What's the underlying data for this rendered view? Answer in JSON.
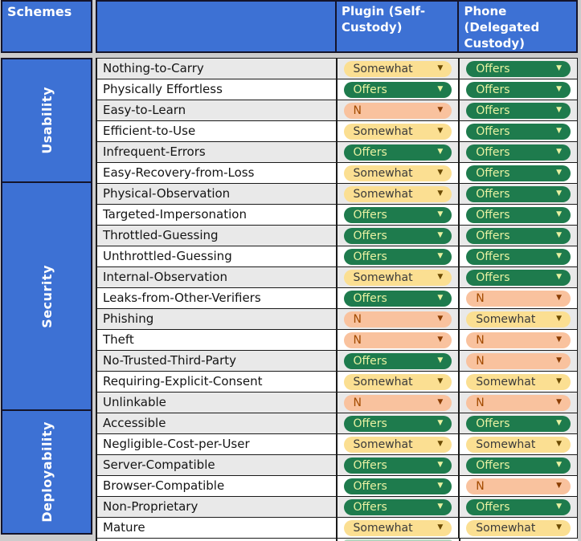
{
  "header": {
    "schemes_label": "Schemes",
    "columns": [
      {
        "key": "plugin",
        "label": "Plugin (Self-Custody)"
      },
      {
        "key": "phone",
        "label": "Phone (Delegated Custody)"
      }
    ]
  },
  "dropdown_options": [
    "Offers",
    "Somewhat",
    "N"
  ],
  "sections": [
    {
      "label": "Usability",
      "rows": [
        {
          "name": "Nothing-to-Carry",
          "plugin": "Somewhat",
          "phone": "Offers"
        },
        {
          "name": "Physically Effortless",
          "plugin": "Offers",
          "phone": "Offers"
        },
        {
          "name": "Easy-to-Learn",
          "plugin": "N",
          "phone": "Offers"
        },
        {
          "name": "Efficient-to-Use",
          "plugin": "Somewhat",
          "phone": "Offers"
        },
        {
          "name": "Infrequent-Errors",
          "plugin": "Offers",
          "phone": "Offers"
        },
        {
          "name": "Easy-Recovery-from-Loss",
          "plugin": "Somewhat",
          "phone": "Offers"
        }
      ]
    },
    {
      "label": "Security",
      "rows": [
        {
          "name": "Physical-Observation",
          "plugin": "Somewhat",
          "phone": "Offers"
        },
        {
          "name": "Targeted-Impersonation",
          "plugin": "Offers",
          "phone": "Offers"
        },
        {
          "name": "Throttled-Guessing",
          "plugin": "Offers",
          "phone": "Offers"
        },
        {
          "name": "Unthrottled-Guessing",
          "plugin": "Offers",
          "phone": "Offers"
        },
        {
          "name": "Internal-Observation",
          "plugin": "Somewhat",
          "phone": "Offers"
        },
        {
          "name": "Leaks-from-Other-Verifiers",
          "plugin": "Offers",
          "phone": "N"
        },
        {
          "name": "Phishing",
          "plugin": "N",
          "phone": "Somewhat"
        },
        {
          "name": "Theft",
          "plugin": "N",
          "phone": "N"
        },
        {
          "name": "No-Trusted-Third-Party",
          "plugin": "Offers",
          "phone": "N"
        },
        {
          "name": "Requiring-Explicit-Consent",
          "plugin": "Somewhat",
          "phone": "Somewhat"
        },
        {
          "name": "Unlinkable",
          "plugin": "N",
          "phone": "N"
        }
      ]
    },
    {
      "label": "Deployability",
      "rows": [
        {
          "name": "Accessible",
          "plugin": "Offers",
          "phone": "Offers"
        },
        {
          "name": "Negligible-Cost-per-User",
          "plugin": "Somewhat",
          "phone": "Somewhat"
        },
        {
          "name": "Server-Compatible",
          "plugin": "Offers",
          "phone": "Offers"
        },
        {
          "name": "Browser-Compatible",
          "plugin": "Offers",
          "phone": "N"
        },
        {
          "name": "Non-Proprietary",
          "plugin": "Offers",
          "phone": "Offers"
        },
        {
          "name": "Mature",
          "plugin": "Somewhat",
          "phone": "Somewhat"
        }
      ]
    }
  ],
  "colors": {
    "header_blue": "#3d71d4",
    "offers_bg": "#1e7b4d",
    "offers_text": "#e9f2a2",
    "somewhat_bg": "#fbdf92",
    "somewhat_text": "#3a3a3a",
    "n_bg": "#f9c29e",
    "n_text": "#a34b00",
    "alt_row_bg": "#e9e9e9",
    "border": "#1a1a1a",
    "partial_next_row_pill": "#b5d6c0"
  }
}
